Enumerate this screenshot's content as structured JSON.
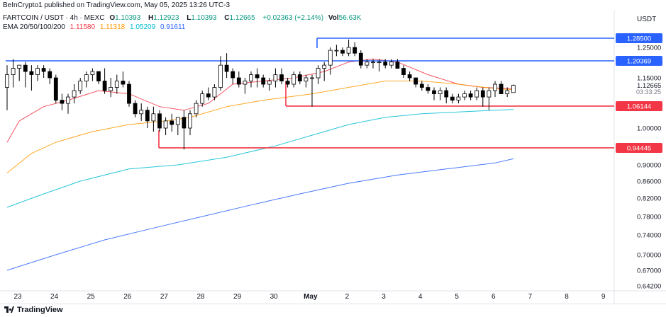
{
  "header": {
    "publisher": "BeInCrypto1 published on TradingView.com, May 05, 2025 13:26 UTC-3",
    "symbol": "FARTCOIN / USDT · 4h · MEXC",
    "ohlc": {
      "o_label": "O",
      "o": "1.10393",
      "h_label": "H",
      "h": "1.12923",
      "l_label": "L",
      "l": "1.10393",
      "c_label": "C",
      "c": "1.12665",
      "change": "+0.02363 (+2.14%)",
      "vol_label": "Vol",
      "vol": "56.63K"
    },
    "ema_label": "EMA 20/50/100/200",
    "ema_values": [
      "1.11580",
      "1.11318",
      "1.05209",
      "0.91611"
    ]
  },
  "currency": "USDT",
  "countdown": "03:33:25",
  "footer": {
    "brand": "TradingView"
  },
  "colors": {
    "up": "#ffffff",
    "down": "#000000",
    "candle_outline": "#000000",
    "ema20": "#f23645",
    "ema50": "#ff9800",
    "ema100": "#00bcd4",
    "ema200": "#2962ff",
    "resistance": "#2962ff",
    "support": "#f23645",
    "ema_values": [
      "#f23645",
      "#ff9800",
      "#00bcd4",
      "#2962ff"
    ]
  },
  "chart_data": {
    "type": "candlestick",
    "timeframe": "4h",
    "x_ticks": [
      "23",
      "24",
      "25",
      "26",
      "27",
      "28",
      "29",
      "30",
      "May",
      "2",
      "3",
      "4",
      "5",
      "6",
      "7",
      "8",
      "9"
    ],
    "y_ticks": [
      "1.25000",
      "1.15000",
      "1.00000",
      "0.90000",
      "0.86000",
      "0.82000",
      "0.78000",
      "0.74000",
      "0.70000",
      "0.67000",
      "0.64200"
    ],
    "y_ticks_num": [
      1.25,
      1.15,
      1.0,
      0.9,
      0.86,
      0.82,
      0.78,
      0.74,
      0.7,
      0.67,
      0.642
    ],
    "y_axis_anchor": {
      "price_high": 1.285,
      "price_low": 0.642
    },
    "levels": [
      {
        "label": "1.28500",
        "value": 1.285,
        "color": "#2962ff",
        "kind": "resistance"
      },
      {
        "label": "1.20369",
        "value": 1.20369,
        "color": "#2962ff",
        "kind": "resistance"
      },
      {
        "label": "1.06144",
        "value": 1.06144,
        "color": "#f23645",
        "kind": "support"
      },
      {
        "label": "0.94445",
        "value": 0.94445,
        "color": "#f23645",
        "kind": "support"
      }
    ],
    "current_price": {
      "label": "1.12665",
      "value": 1.12665
    },
    "candles": [
      {
        "o": 1.12,
        "h": 1.19,
        "l": 1.05,
        "c": 1.16
      },
      {
        "o": 1.16,
        "h": 1.21,
        "l": 1.12,
        "c": 1.18
      },
      {
        "o": 1.18,
        "h": 1.19,
        "l": 1.14,
        "c": 1.19
      },
      {
        "o": 1.19,
        "h": 1.2,
        "l": 1.12,
        "c": 1.17
      },
      {
        "o": 1.17,
        "h": 1.19,
        "l": 1.11,
        "c": 1.16
      },
      {
        "o": 1.16,
        "h": 1.19,
        "l": 1.14,
        "c": 1.18
      },
      {
        "o": 1.18,
        "h": 1.19,
        "l": 1.15,
        "c": 1.17
      },
      {
        "o": 1.17,
        "h": 1.18,
        "l": 1.13,
        "c": 1.15
      },
      {
        "o": 1.15,
        "h": 1.16,
        "l": 1.07,
        "c": 1.08
      },
      {
        "o": 1.08,
        "h": 1.1,
        "l": 1.05,
        "c": 1.07
      },
      {
        "o": 1.07,
        "h": 1.1,
        "l": 1.04,
        "c": 1.09
      },
      {
        "o": 1.09,
        "h": 1.13,
        "l": 1.07,
        "c": 1.11
      },
      {
        "o": 1.11,
        "h": 1.15,
        "l": 1.1,
        "c": 1.14
      },
      {
        "o": 1.14,
        "h": 1.17,
        "l": 1.12,
        "c": 1.16
      },
      {
        "o": 1.16,
        "h": 1.18,
        "l": 1.14,
        "c": 1.17
      },
      {
        "o": 1.17,
        "h": 1.17,
        "l": 1.13,
        "c": 1.14
      },
      {
        "o": 1.14,
        "h": 1.18,
        "l": 1.1,
        "c": 1.11
      },
      {
        "o": 1.11,
        "h": 1.15,
        "l": 1.09,
        "c": 1.12
      },
      {
        "o": 1.12,
        "h": 1.16,
        "l": 1.1,
        "c": 1.14
      },
      {
        "o": 1.14,
        "h": 1.17,
        "l": 1.12,
        "c": 1.13
      },
      {
        "o": 1.13,
        "h": 1.14,
        "l": 1.06,
        "c": 1.07
      },
      {
        "o": 1.07,
        "h": 1.08,
        "l": 1.03,
        "c": 1.04
      },
      {
        "o": 1.04,
        "h": 1.07,
        "l": 1.02,
        "c": 1.05
      },
      {
        "o": 1.05,
        "h": 1.06,
        "l": 1.0,
        "c": 1.02
      },
      {
        "o": 1.02,
        "h": 1.06,
        "l": 0.99,
        "c": 1.04
      },
      {
        "o": 1.04,
        "h": 1.05,
        "l": 0.99,
        "c": 1.0
      },
      {
        "o": 1.0,
        "h": 1.03,
        "l": 0.98,
        "c": 1.02
      },
      {
        "o": 1.02,
        "h": 1.04,
        "l": 0.99,
        "c": 1.01
      },
      {
        "o": 1.01,
        "h": 1.03,
        "l": 0.98,
        "c": 1.03
      },
      {
        "o": 1.03,
        "h": 1.05,
        "l": 0.94,
        "c": 1.0
      },
      {
        "o": 1.0,
        "h": 1.05,
        "l": 0.98,
        "c": 1.04
      },
      {
        "o": 1.04,
        "h": 1.08,
        "l": 1.03,
        "c": 1.07
      },
      {
        "o": 1.07,
        "h": 1.11,
        "l": 1.06,
        "c": 1.1
      },
      {
        "o": 1.1,
        "h": 1.12,
        "l": 1.08,
        "c": 1.09
      },
      {
        "o": 1.09,
        "h": 1.13,
        "l": 1.08,
        "c": 1.12
      },
      {
        "o": 1.12,
        "h": 1.22,
        "l": 1.11,
        "c": 1.19
      },
      {
        "o": 1.19,
        "h": 1.23,
        "l": 1.15,
        "c": 1.17
      },
      {
        "o": 1.17,
        "h": 1.18,
        "l": 1.13,
        "c": 1.15
      },
      {
        "o": 1.15,
        "h": 1.17,
        "l": 1.12,
        "c": 1.13
      },
      {
        "o": 1.13,
        "h": 1.15,
        "l": 1.1,
        "c": 1.14
      },
      {
        "o": 1.14,
        "h": 1.17,
        "l": 1.12,
        "c": 1.16
      },
      {
        "o": 1.16,
        "h": 1.18,
        "l": 1.12,
        "c": 1.15
      },
      {
        "o": 1.15,
        "h": 1.16,
        "l": 1.12,
        "c": 1.13
      },
      {
        "o": 1.13,
        "h": 1.15,
        "l": 1.11,
        "c": 1.14
      },
      {
        "o": 1.14,
        "h": 1.18,
        "l": 1.12,
        "c": 1.16
      },
      {
        "o": 1.16,
        "h": 1.18,
        "l": 1.13,
        "c": 1.14
      },
      {
        "o": 1.14,
        "h": 1.15,
        "l": 1.12,
        "c": 1.13
      },
      {
        "o": 1.13,
        "h": 1.17,
        "l": 1.12,
        "c": 1.16
      },
      {
        "o": 1.16,
        "h": 1.17,
        "l": 1.13,
        "c": 1.14
      },
      {
        "o": 1.14,
        "h": 1.16,
        "l": 1.12,
        "c": 1.15
      },
      {
        "o": 1.15,
        "h": 1.16,
        "l": 1.06,
        "c": 1.15
      },
      {
        "o": 1.15,
        "h": 1.19,
        "l": 1.13,
        "c": 1.18
      },
      {
        "o": 1.18,
        "h": 1.2,
        "l": 1.14,
        "c": 1.19
      },
      {
        "o": 1.19,
        "h": 1.25,
        "l": 1.16,
        "c": 1.24
      },
      {
        "o": 1.24,
        "h": 1.26,
        "l": 1.22,
        "c": 1.24
      },
      {
        "o": 1.24,
        "h": 1.25,
        "l": 1.22,
        "c": 1.23
      },
      {
        "o": 1.23,
        "h": 1.28,
        "l": 1.22,
        "c": 1.25
      },
      {
        "o": 1.25,
        "h": 1.27,
        "l": 1.22,
        "c": 1.23
      },
      {
        "o": 1.23,
        "h": 1.24,
        "l": 1.18,
        "c": 1.19
      },
      {
        "o": 1.19,
        "h": 1.21,
        "l": 1.18,
        "c": 1.2
      },
      {
        "o": 1.2,
        "h": 1.21,
        "l": 1.18,
        "c": 1.2
      },
      {
        "o": 1.2,
        "h": 1.21,
        "l": 1.17,
        "c": 1.2
      },
      {
        "o": 1.2,
        "h": 1.21,
        "l": 1.18,
        "c": 1.19
      },
      {
        "o": 1.19,
        "h": 1.21,
        "l": 1.18,
        "c": 1.2
      },
      {
        "o": 1.2,
        "h": 1.21,
        "l": 1.18,
        "c": 1.18
      },
      {
        "o": 1.18,
        "h": 1.19,
        "l": 1.15,
        "c": 1.16
      },
      {
        "o": 1.16,
        "h": 1.17,
        "l": 1.14,
        "c": 1.15
      },
      {
        "o": 1.15,
        "h": 1.15,
        "l": 1.12,
        "c": 1.13
      },
      {
        "o": 1.13,
        "h": 1.14,
        "l": 1.11,
        "c": 1.12
      },
      {
        "o": 1.12,
        "h": 1.13,
        "l": 1.1,
        "c": 1.11
      },
      {
        "o": 1.11,
        "h": 1.12,
        "l": 1.08,
        "c": 1.1
      },
      {
        "o": 1.1,
        "h": 1.12,
        "l": 1.08,
        "c": 1.11
      },
      {
        "o": 1.11,
        "h": 1.12,
        "l": 1.07,
        "c": 1.09
      },
      {
        "o": 1.09,
        "h": 1.1,
        "l": 1.07,
        "c": 1.08
      },
      {
        "o": 1.08,
        "h": 1.1,
        "l": 1.07,
        "c": 1.09
      },
      {
        "o": 1.09,
        "h": 1.11,
        "l": 1.08,
        "c": 1.1
      },
      {
        "o": 1.1,
        "h": 1.11,
        "l": 1.08,
        "c": 1.09
      },
      {
        "o": 1.09,
        "h": 1.12,
        "l": 1.08,
        "c": 1.11
      },
      {
        "o": 1.11,
        "h": 1.12,
        "l": 1.06,
        "c": 1.09
      },
      {
        "o": 1.09,
        "h": 1.12,
        "l": 1.05,
        "c": 1.11
      },
      {
        "o": 1.11,
        "h": 1.14,
        "l": 1.09,
        "c": 1.13
      },
      {
        "o": 1.13,
        "h": 1.14,
        "l": 1.1,
        "c": 1.1
      },
      {
        "o": 1.1,
        "h": 1.12,
        "l": 1.09,
        "c": 1.11
      },
      {
        "o": 1.10393,
        "h": 1.12923,
        "l": 1.10393,
        "c": 1.12665
      }
    ],
    "ema": [
      {
        "name": "EMA 20",
        "color": "#f23645",
        "points": [
          [
            0,
            0.96
          ],
          [
            2,
            1.02
          ],
          [
            6,
            1.06
          ],
          [
            10,
            1.08
          ],
          [
            15,
            1.11
          ],
          [
            20,
            1.1
          ],
          [
            25,
            1.06
          ],
          [
            29,
            1.05
          ],
          [
            33,
            1.07
          ],
          [
            37,
            1.13
          ],
          [
            42,
            1.14
          ],
          [
            47,
            1.15
          ],
          [
            52,
            1.17
          ],
          [
            56,
            1.2
          ],
          [
            60,
            1.21
          ],
          [
            64,
            1.2
          ],
          [
            69,
            1.16
          ],
          [
            74,
            1.13
          ],
          [
            78,
            1.12
          ],
          [
            83,
            1.116
          ]
        ]
      },
      {
        "name": "EMA 50",
        "color": "#ff9800",
        "points": [
          [
            0,
            0.88
          ],
          [
            4,
            0.93
          ],
          [
            8,
            0.96
          ],
          [
            14,
            0.99
          ],
          [
            20,
            1.01
          ],
          [
            26,
            1.02
          ],
          [
            30,
            1.03
          ],
          [
            36,
            1.06
          ],
          [
            42,
            1.08
          ],
          [
            50,
            1.1
          ],
          [
            56,
            1.12
          ],
          [
            62,
            1.14
          ],
          [
            68,
            1.14
          ],
          [
            74,
            1.13
          ],
          [
            80,
            1.116
          ],
          [
            83,
            1.113
          ]
        ]
      },
      {
        "name": "EMA 100",
        "color": "#00bcd4",
        "points": [
          [
            0,
            0.8
          ],
          [
            6,
            0.83
          ],
          [
            12,
            0.86
          ],
          [
            20,
            0.89
          ],
          [
            28,
            0.9
          ],
          [
            36,
            0.92
          ],
          [
            44,
            0.95
          ],
          [
            50,
            0.98
          ],
          [
            56,
            1.01
          ],
          [
            62,
            1.03
          ],
          [
            68,
            1.04
          ],
          [
            74,
            1.045
          ],
          [
            80,
            1.05
          ],
          [
            83,
            1.052
          ]
        ]
      },
      {
        "name": "EMA 200",
        "color": "#2962ff",
        "points": [
          [
            0,
            0.67
          ],
          [
            8,
            0.7
          ],
          [
            16,
            0.73
          ],
          [
            24,
            0.755
          ],
          [
            32,
            0.78
          ],
          [
            40,
            0.805
          ],
          [
            48,
            0.83
          ],
          [
            56,
            0.855
          ],
          [
            64,
            0.875
          ],
          [
            72,
            0.89
          ],
          [
            80,
            0.905
          ],
          [
            83,
            0.916
          ]
        ]
      }
    ]
  }
}
